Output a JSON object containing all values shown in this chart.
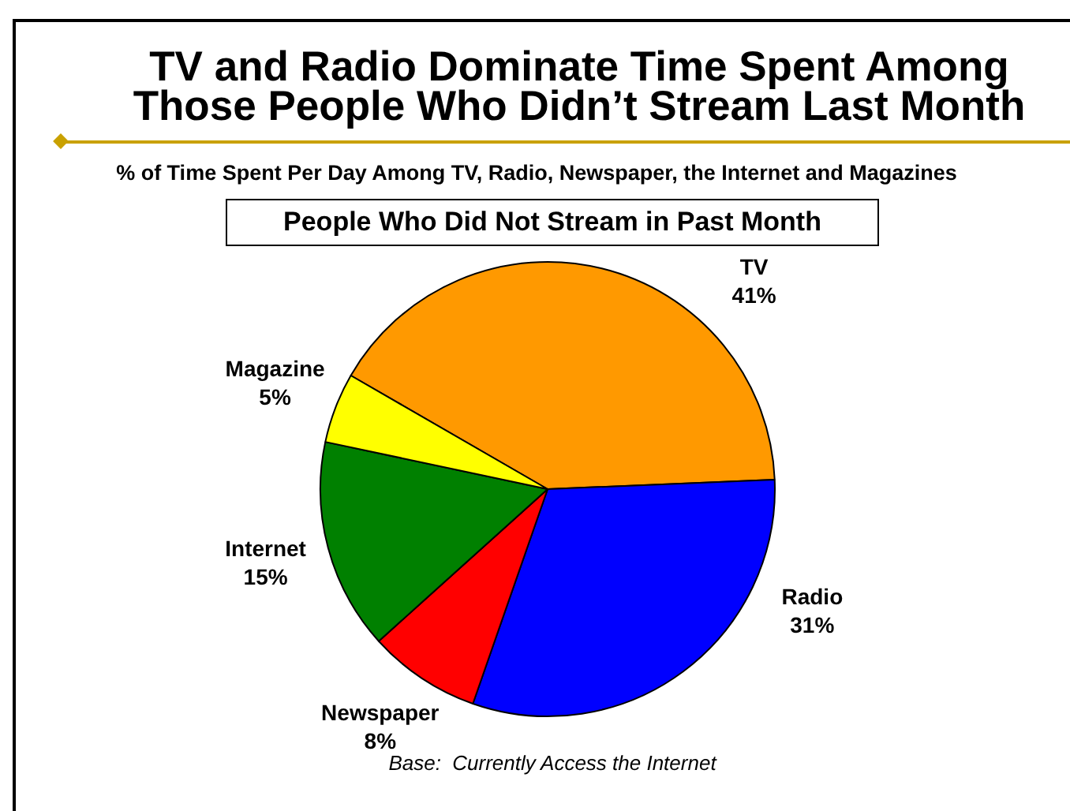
{
  "chart_data": {
    "type": "pie",
    "title": "TV and Radio Dominate Time Spent Among Those People Who Didn’t Stream Last Month",
    "subtitle": "% of Time Spent Per Day Among TV, Radio, Newspaper, the Internet and Magazines",
    "annotations": [
      "People Who Did Not Stream in Past Month",
      "Base:  Currently Access the Internet"
    ],
    "categories": [
      "TV",
      "Radio",
      "Newspaper",
      "Internet",
      "Magazine"
    ],
    "values": [
      41,
      31,
      8,
      15,
      5
    ],
    "value_labels": [
      "41%",
      "31%",
      "8%",
      "15%",
      "5%"
    ],
    "colors": [
      "#ff9900",
      "#0000ff",
      "#ff0000",
      "#008000",
      "#ffff00"
    ]
  }
}
